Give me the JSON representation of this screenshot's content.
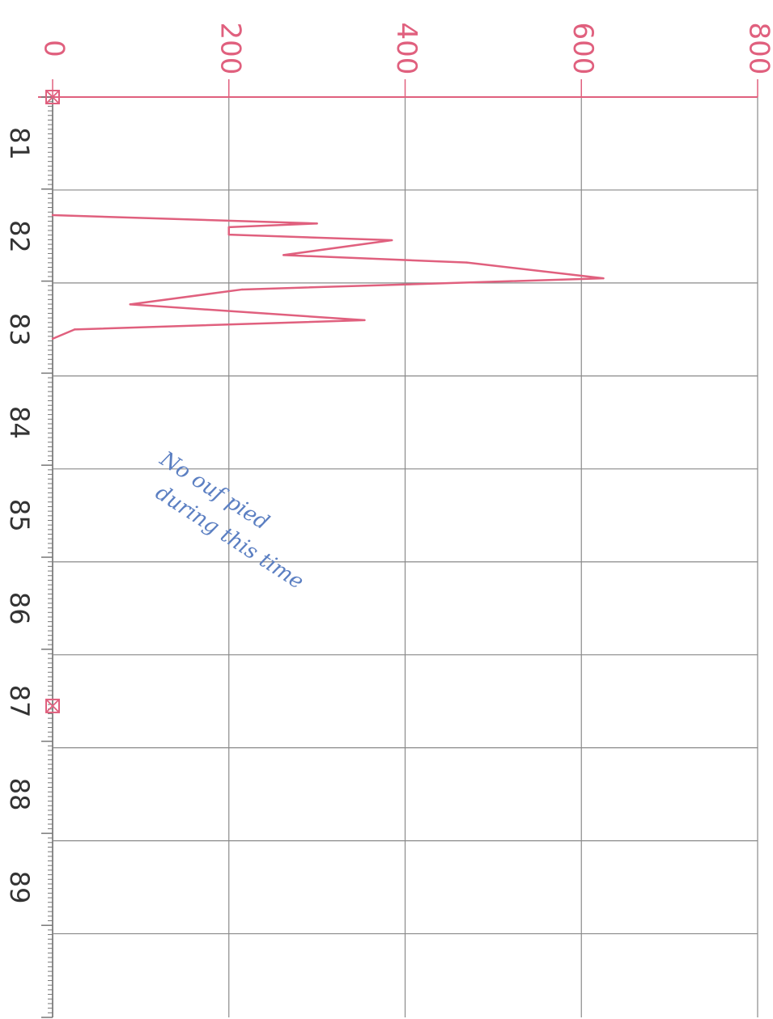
{
  "colors": {
    "axis": "#e0607e",
    "grid": "#8a8a8a",
    "series": "#e0607e",
    "marker": "#e0607e",
    "annotation": "#5b7fc2",
    "background": "#ffffff"
  },
  "chart_data": {
    "type": "line",
    "orientation": "vertical-time-axis",
    "x_ticks": [
      "0",
      "200",
      "400",
      "600",
      "800"
    ],
    "y_ticks": [
      "81",
      "82",
      "83",
      "84",
      "85",
      "86",
      "87",
      "88",
      "89"
    ],
    "xlim": [
      0,
      800
    ],
    "ylim": [
      80.0,
      89.9
    ],
    "grid": true,
    "series": [
      {
        "points": [
          {
            "t": 81.27,
            "v": 0
          },
          {
            "t": 81.36,
            "v": 300
          },
          {
            "t": 81.4,
            "v": 200
          },
          {
            "t": 81.48,
            "v": 200
          },
          {
            "t": 81.54,
            "v": 385
          },
          {
            "t": 81.7,
            "v": 262
          },
          {
            "t": 81.78,
            "v": 470
          },
          {
            "t": 81.95,
            "v": 625
          },
          {
            "t": 82.07,
            "v": 215
          },
          {
            "t": 82.23,
            "v": 88
          },
          {
            "t": 82.4,
            "v": 354
          },
          {
            "t": 82.5,
            "v": 25
          },
          {
            "t": 82.6,
            "v": 0
          }
        ]
      }
    ],
    "markers": [
      {
        "t": 80.0,
        "v": 0
      },
      {
        "t": 86.55,
        "v": 0
      }
    ],
    "annotation": [
      "No ouf pied",
      "during this time"
    ]
  }
}
